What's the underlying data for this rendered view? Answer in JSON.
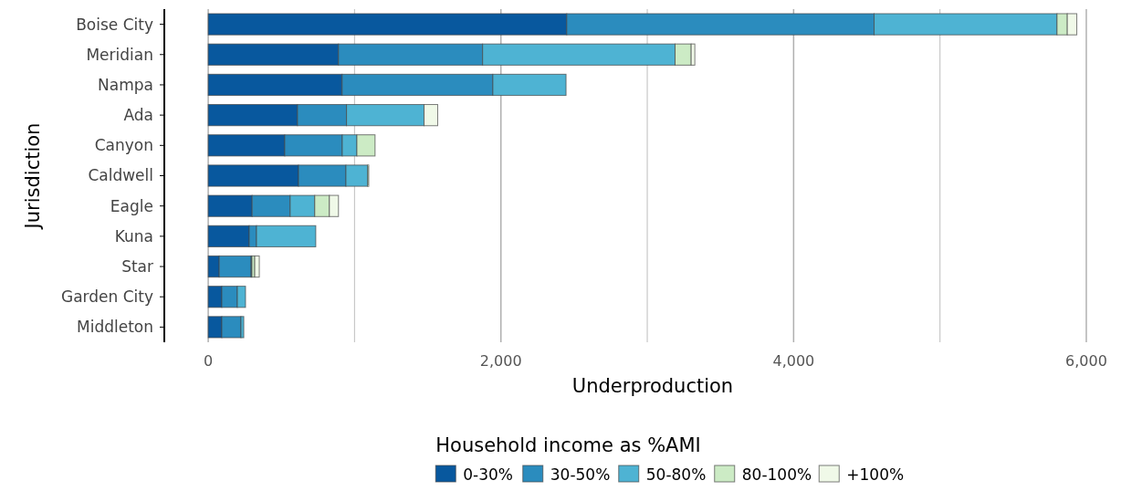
{
  "chart_data": {
    "type": "bar",
    "orientation": "horizontal",
    "stacked": true,
    "xlabel": "Underproduction",
    "ylabel": "Jurisdiction",
    "legend_title": "Household income as %AMI",
    "legend": "bottom",
    "grid": "x",
    "categories": [
      "Boise City",
      "Meridian",
      "Nampa",
      "Ada",
      "Canyon",
      "Caldwell",
      "Eagle",
      "Kuna",
      "Star",
      "Garden City",
      "Middleton"
    ],
    "xlim": [
      -300,
      6000
    ],
    "xticks": [
      0,
      {
        "value": 1000,
        "label": null
      },
      {
        "value": 2000,
        "label": "2,000"
      },
      {
        "value": 3000,
        "label": null
      },
      {
        "value": 4000,
        "label": "4,000"
      },
      {
        "value": 5000,
        "label": null
      },
      {
        "value": 6000,
        "label": "6,000"
      }
    ],
    "series": [
      {
        "name": "0-30%",
        "color": "#08589e",
        "values": [
          2450,
          890,
          915,
          610,
          523,
          617,
          300,
          280,
          75,
          93,
          93
        ]
      },
      {
        "name": "30-50%",
        "color": "#2b8cbe",
        "values": [
          2100,
          985,
          1030,
          335,
          393,
          324,
          260,
          50,
          218,
          106,
          131
        ]
      },
      {
        "name": "50-80%",
        "color": "#4eb3d3",
        "values": [
          1250,
          1315,
          500,
          530,
          100,
          149,
          168,
          405,
          6,
          56,
          19
        ]
      },
      {
        "name": "80-100%",
        "color": "#ccebc5",
        "values": [
          70,
          110,
          null,
          null,
          124,
          7,
          100,
          null,
          19,
          null,
          null
        ]
      },
      {
        "name": "+100%",
        "color": "#f0f9e8",
        "values": [
          65,
          25,
          null,
          93,
          null,
          null,
          62,
          null,
          31,
          null,
          null
        ]
      }
    ]
  }
}
